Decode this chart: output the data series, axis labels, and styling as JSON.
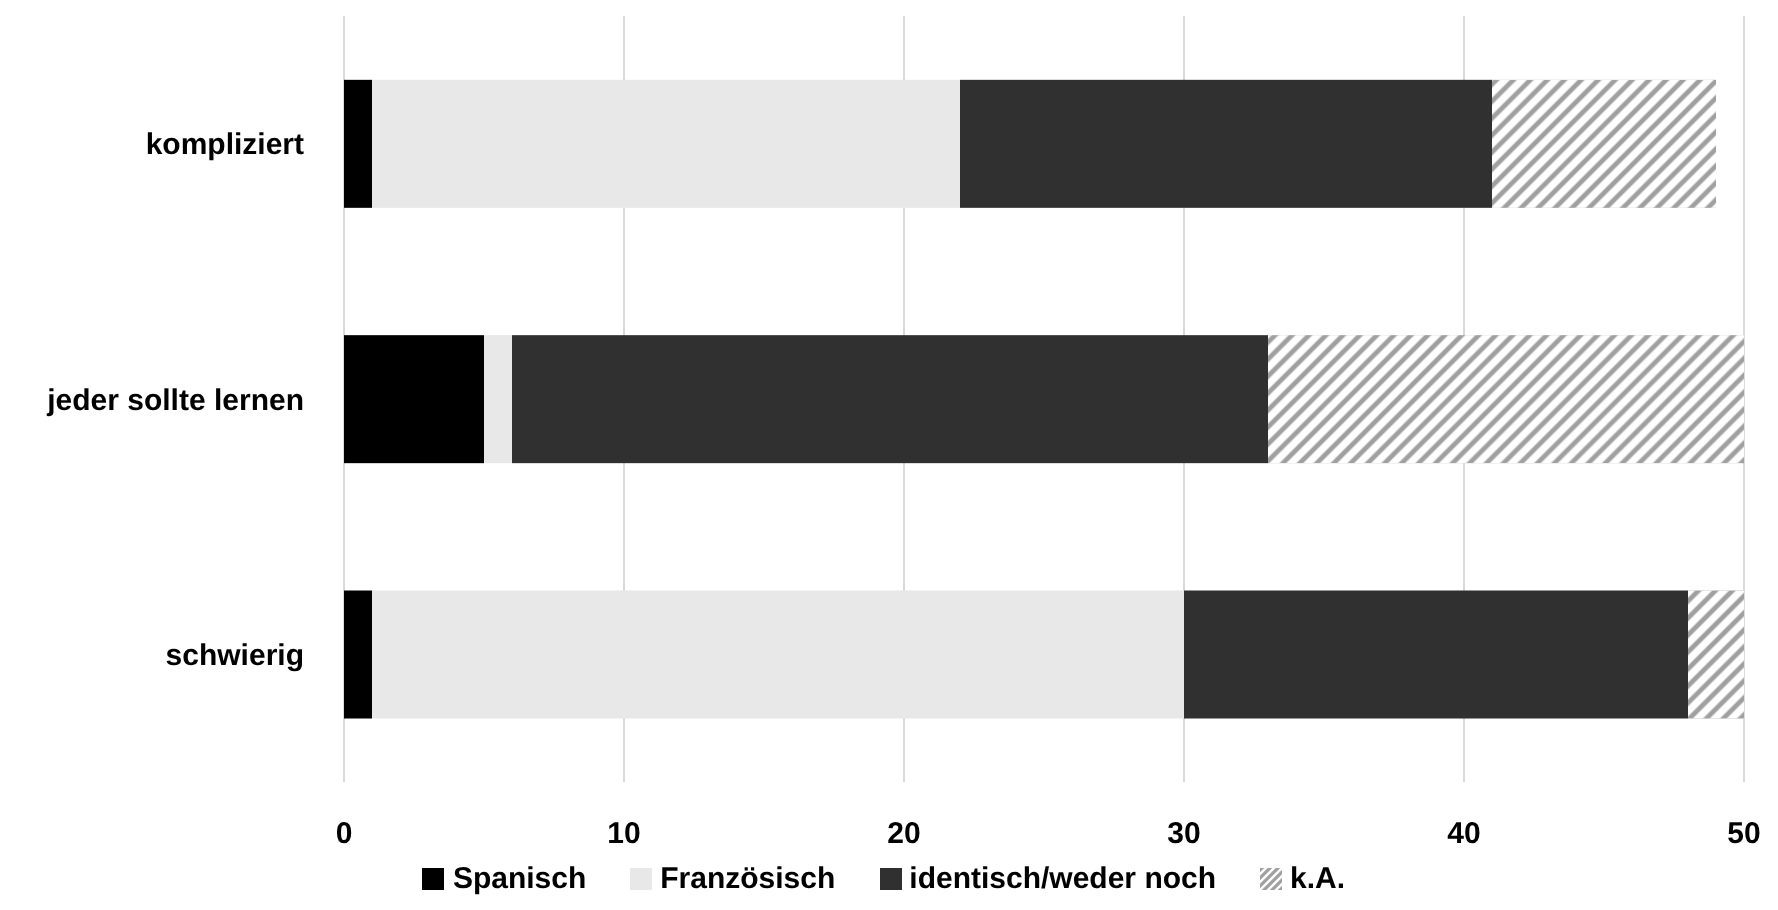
{
  "chart_data": {
    "type": "bar",
    "orientation": "horizontal",
    "stacked": true,
    "categories": [
      "kompliziert",
      "jeder sollte lernen",
      "schwierig"
    ],
    "series": [
      {
        "name": "Spanisch",
        "color": "#000000",
        "values": [
          1,
          5,
          1
        ]
      },
      {
        "name": "Französisch",
        "color": "#e8e8e8",
        "values": [
          21,
          1,
          29
        ]
      },
      {
        "name": "identisch/weder noch",
        "color": "#303030",
        "values": [
          19,
          27,
          18
        ]
      },
      {
        "name": "k.A.",
        "color": "#a0a0a0",
        "values": [
          8,
          17,
          2
        ]
      }
    ],
    "xlim": [
      0,
      50
    ],
    "xticks": [
      0,
      10,
      20,
      30,
      40,
      50
    ],
    "grid": "x",
    "legend": "bottom"
  }
}
